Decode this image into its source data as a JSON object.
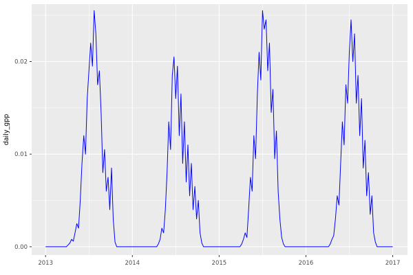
{
  "chart_data": {
    "type": "line",
    "title": "",
    "xlabel": "",
    "ylabel": "daily_gpp",
    "legend": "none",
    "grid": true,
    "panel_bg": "#EBEBEB",
    "grid_color": "#FFFFFF",
    "line_color": "#0000FF",
    "tick_color": "#333333",
    "xlim": [
      2012.84,
      2017.17
    ],
    "ylim": [
      -0.0009,
      0.0262
    ],
    "x_ticks": {
      "values": [
        2013,
        2014,
        2015,
        2016,
        2017
      ],
      "labels": [
        "2013",
        "2014",
        "2015",
        "2016",
        "2017"
      ]
    },
    "y_ticks": {
      "values": [
        0,
        0.01,
        0.02
      ],
      "labels": [
        "0.00",
        "0.01",
        "0.02"
      ]
    },
    "x_minor": [
      2013.5,
      2014.5,
      2015.5,
      2016.5
    ],
    "y_minor": [
      0.005,
      0.015,
      0.025
    ],
    "series": [
      {
        "name": "daily_gpp",
        "x0": 2013,
        "dx": 0.02,
        "values": [
          0,
          0,
          0,
          0,
          0,
          0,
          0,
          0,
          0,
          0,
          0,
          0,
          0,
          0.0002,
          0.0004,
          0.0008,
          0.0006,
          0.0015,
          0.0025,
          0.002,
          0.005,
          0.009,
          0.012,
          0.01,
          0.016,
          0.019,
          0.022,
          0.0195,
          0.0255,
          0.023,
          0.0175,
          0.019,
          0.0145,
          0.008,
          0.0105,
          0.006,
          0.0075,
          0.004,
          0.0085,
          0.003,
          0.0005,
          0,
          0,
          0,
          0,
          0,
          0,
          0,
          0,
          0,
          0,
          0,
          0,
          0,
          0,
          0,
          0,
          0,
          0,
          0,
          0,
          0,
          0,
          0,
          0,
          0.0003,
          0.0008,
          0.002,
          0.0015,
          0.004,
          0.008,
          0.0135,
          0.0105,
          0.0185,
          0.0205,
          0.016,
          0.0195,
          0.012,
          0.0165,
          0.009,
          0.0135,
          0.007,
          0.011,
          0.0055,
          0.009,
          0.004,
          0.0065,
          0.003,
          0.005,
          0.0015,
          0.0004,
          0,
          0,
          0,
          0,
          0,
          0,
          0,
          0,
          0,
          0,
          0,
          0,
          0,
          0,
          0,
          0,
          0,
          0,
          0,
          0,
          0,
          0,
          0.0003,
          0.0008,
          0.0015,
          0.001,
          0.004,
          0.0075,
          0.006,
          0.012,
          0.0095,
          0.0165,
          0.021,
          0.018,
          0.0255,
          0.0235,
          0.0245,
          0.019,
          0.022,
          0.0145,
          0.017,
          0.0095,
          0.0125,
          0.006,
          0.003,
          0.001,
          0.0003,
          0,
          0,
          0,
          0,
          0,
          0,
          0,
          0,
          0,
          0,
          0,
          0,
          0,
          0,
          0,
          0,
          0,
          0,
          0,
          0,
          0,
          0,
          0,
          0,
          0,
          0,
          0.0003,
          0.0008,
          0.0012,
          0.003,
          0.0055,
          0.0045,
          0.009,
          0.0135,
          0.011,
          0.0175,
          0.0155,
          0.021,
          0.0245,
          0.02,
          0.023,
          0.0155,
          0.0185,
          0.012,
          0.016,
          0.0085,
          0.0115,
          0.0055,
          0.008,
          0.0035,
          0.0055,
          0.0015,
          0.0005,
          0,
          0,
          0,
          0,
          0,
          0,
          0,
          0,
          0,
          0
        ]
      }
    ]
  }
}
